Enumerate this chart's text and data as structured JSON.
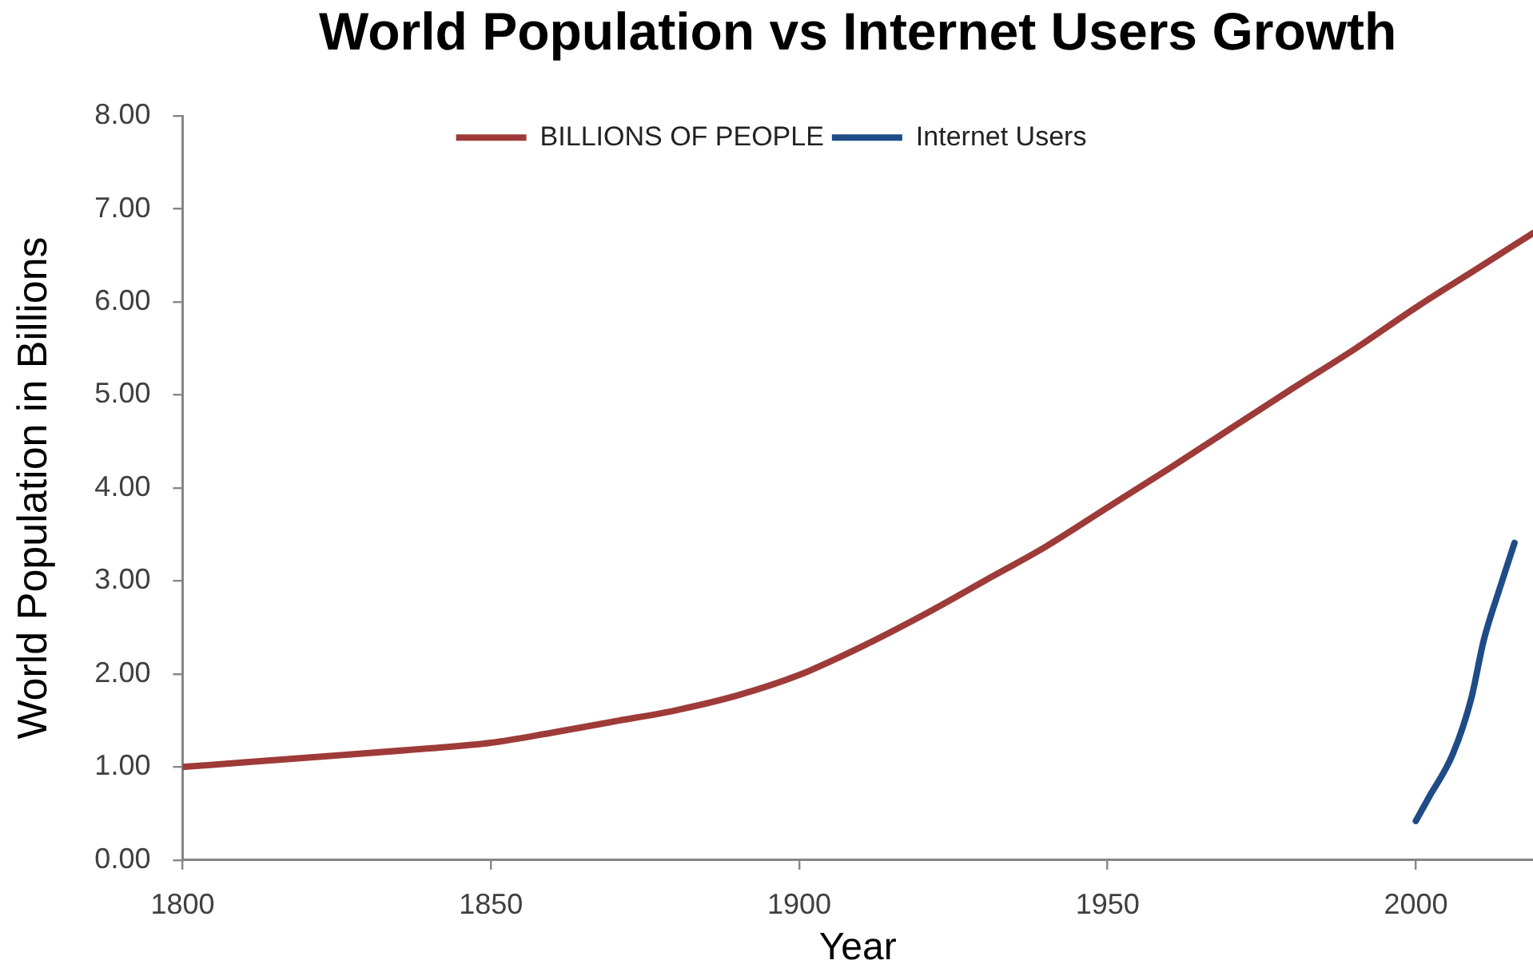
{
  "chart_data": {
    "type": "line",
    "title": "World Population vs Internet Users Growth",
    "xlabel": "Year",
    "ylabel": "World Population in Billions",
    "x": [
      1800,
      1820,
      1840,
      1850,
      1860,
      1870,
      1880,
      1890,
      1900,
      1910,
      1920,
      1930,
      1940,
      1950,
      1960,
      1970,
      1980,
      1990,
      2000,
      2010,
      2019
    ],
    "series": [
      {
        "name": "BILLIONS OF PEOPLE",
        "color": "#9e3b38",
        "values": [
          1.0,
          1.1,
          1.2,
          1.26,
          1.37,
          1.49,
          1.61,
          1.77,
          1.99,
          2.29,
          2.63,
          3.0,
          3.37,
          3.79,
          4.21,
          4.64,
          5.07,
          5.49,
          5.94,
          6.36,
          6.74
        ]
      },
      {
        "name": "Internet Users",
        "color": "#1f4b87",
        "x": [
          2000,
          2002,
          2006,
          2009,
          2011,
          2013.5,
          2016
        ],
        "values": [
          0.42,
          0.66,
          1.14,
          1.74,
          2.36,
          2.9,
          3.41
        ]
      }
    ],
    "xlim": [
      1800,
      2019
    ],
    "xticks": [
      1800,
      1850,
      1900,
      1950,
      2000
    ],
    "ylim": [
      0,
      8
    ],
    "yticks": [
      {
        "value": 0,
        "label": "0.00"
      },
      {
        "value": 1,
        "label": "1.00"
      },
      {
        "value": 2,
        "label": "2.00"
      },
      {
        "value": 3,
        "label": "3.00"
      },
      {
        "value": 4,
        "label": "4.00"
      },
      {
        "value": 5,
        "label": "5.00"
      },
      {
        "value": 6,
        "label": "6.00"
      },
      {
        "value": 7,
        "label": "7.00"
      },
      {
        "value": 8,
        "label": "8.00"
      }
    ],
    "legend": "top",
    "marker": "none",
    "line_style": "solid"
  }
}
